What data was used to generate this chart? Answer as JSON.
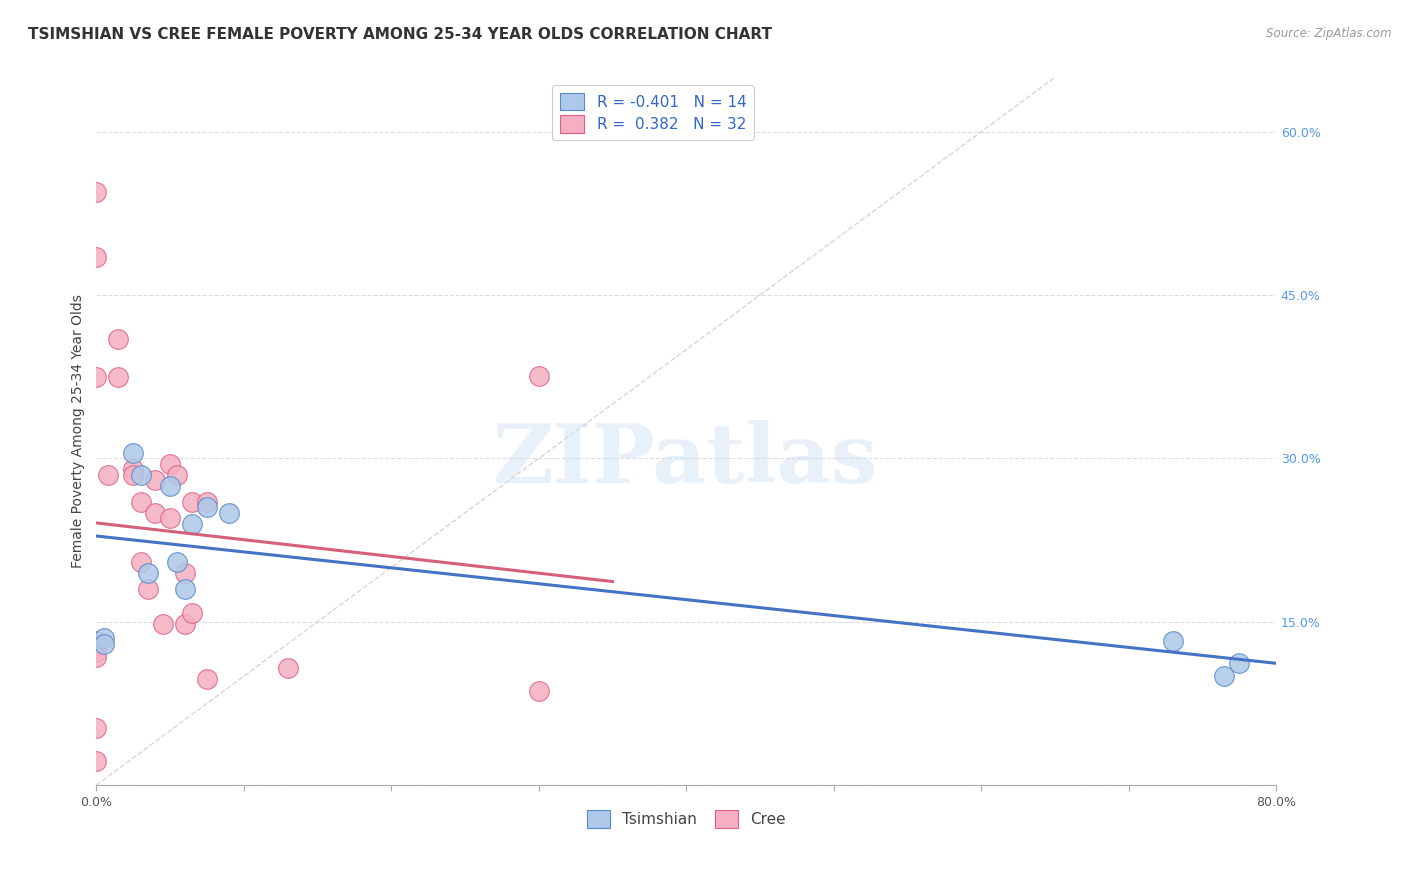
{
  "title": "TSIMSHIAN VS CREE FEMALE POVERTY AMONG 25-34 YEAR OLDS CORRELATION CHART",
  "source": "Source: ZipAtlas.com",
  "ylabel": "Female Poverty Among 25-34 Year Olds",
  "xlim": [
    0.0,
    0.8
  ],
  "ylim": [
    0.0,
    0.65
  ],
  "x_ticks": [
    0.0,
    0.1,
    0.2,
    0.3,
    0.4,
    0.5,
    0.6,
    0.7,
    0.8
  ],
  "y_ticks_right": [
    0.0,
    0.15,
    0.3,
    0.45,
    0.6
  ],
  "y_tick_labels_right": [
    "",
    "15.0%",
    "30.0%",
    "45.0%",
    "60.0%"
  ],
  "tsimshian_color": "#adc8e8",
  "cree_color": "#f5afc0",
  "tsimshian_edge": "#5588cc",
  "cree_edge": "#e06080",
  "tsimshian_line_color": "#4472c4",
  "cree_line_color": "#d4607a",
  "R_tsimshian": -0.401,
  "N_tsimshian": 14,
  "R_cree": 0.382,
  "N_cree": 32,
  "watermark_text": "ZIPatlas",
  "tsimshian_x": [
    0.005,
    0.005,
    0.025,
    0.03,
    0.035,
    0.05,
    0.055,
    0.06,
    0.065,
    0.075,
    0.09,
    0.73,
    0.765,
    0.775
  ],
  "tsimshian_y": [
    0.135,
    0.13,
    0.305,
    0.285,
    0.195,
    0.275,
    0.205,
    0.18,
    0.24,
    0.255,
    0.25,
    0.132,
    0.1,
    0.112
  ],
  "cree_x": [
    0.0,
    0.0,
    0.0,
    0.0,
    0.0,
    0.0,
    0.0,
    0.0,
    0.0,
    0.008,
    0.015,
    0.015,
    0.025,
    0.025,
    0.03,
    0.03,
    0.035,
    0.04,
    0.04,
    0.045,
    0.05,
    0.05,
    0.055,
    0.06,
    0.06,
    0.065,
    0.065,
    0.075,
    0.075,
    0.13,
    0.3,
    0.3
  ],
  "cree_y": [
    0.545,
    0.485,
    0.375,
    0.132,
    0.128,
    0.122,
    0.118,
    0.052,
    0.022,
    0.285,
    0.41,
    0.375,
    0.29,
    0.285,
    0.26,
    0.205,
    0.18,
    0.28,
    0.25,
    0.148,
    0.295,
    0.245,
    0.285,
    0.195,
    0.148,
    0.26,
    0.158,
    0.26,
    0.097,
    0.108,
    0.086,
    0.376
  ],
  "background_color": "#ffffff",
  "grid_color": "#dddddd",
  "title_fontsize": 11,
  "axis_label_fontsize": 10,
  "tick_fontsize": 9,
  "legend_fontsize": 11
}
